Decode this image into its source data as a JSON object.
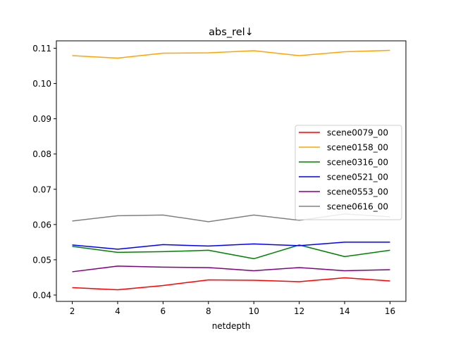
{
  "chart_data": {
    "type": "line",
    "title": "abs_rel↓",
    "xlabel": "netdepth",
    "ylabel": "",
    "x": [
      2,
      4,
      6,
      8,
      10,
      12,
      14,
      16
    ],
    "xticks": [
      2,
      4,
      6,
      8,
      10,
      12,
      14,
      16
    ],
    "xtick_labels": [
      "2",
      "4",
      "6",
      "8",
      "10",
      "12",
      "14",
      "16"
    ],
    "xlim": [
      1.3,
      16.7
    ],
    "yticks": [
      0.04,
      0.05,
      0.06,
      0.07,
      0.08,
      0.09,
      0.1,
      0.11
    ],
    "ytick_labels": [
      "0.04",
      "0.05",
      "0.06",
      "0.07",
      "0.08",
      "0.09",
      "0.10",
      "0.11"
    ],
    "ylim": [
      0.0382,
      0.1121
    ],
    "grid": false,
    "legend_position": "center-right",
    "series": [
      {
        "name": "scene0079_00",
        "color": "#ff0000",
        "values": [
          0.0421,
          0.0415,
          0.0427,
          0.0443,
          0.0442,
          0.0438,
          0.0449,
          0.044
        ]
      },
      {
        "name": "scene0158_00",
        "color": "#ffa500",
        "values": [
          0.1079,
          0.1072,
          0.1086,
          0.1087,
          0.1093,
          0.1079,
          0.109,
          0.1094
        ]
      },
      {
        "name": "scene0316_00",
        "color": "#008000",
        "values": [
          0.0538,
          0.0521,
          0.0523,
          0.0527,
          0.0503,
          0.0542,
          0.0509,
          0.0527
        ]
      },
      {
        "name": "scene0521_00",
        "color": "#0000ff",
        "values": [
          0.0542,
          0.053,
          0.0543,
          0.0539,
          0.0545,
          0.054,
          0.055,
          0.055
        ]
      },
      {
        "name": "scene0553_00",
        "color": "#800080",
        "values": [
          0.0466,
          0.0482,
          0.0479,
          0.0478,
          0.0469,
          0.0478,
          0.0469,
          0.0472
        ]
      },
      {
        "name": "scene0616_00",
        "color": "#808080",
        "values": [
          0.061,
          0.0625,
          0.0627,
          0.0608,
          0.0627,
          0.0612,
          0.063,
          0.0622
        ]
      }
    ]
  }
}
